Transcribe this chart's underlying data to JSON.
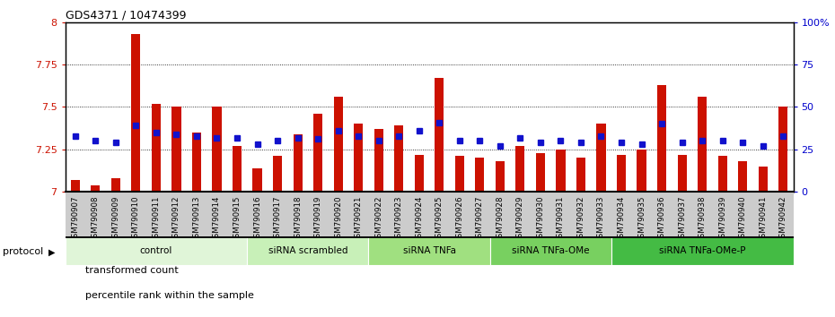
{
  "title": "GDS4371 / 10474399",
  "samples": [
    "GSM790907",
    "GSM790908",
    "GSM790909",
    "GSM790910",
    "GSM790911",
    "GSM790912",
    "GSM790913",
    "GSM790914",
    "GSM790915",
    "GSM790916",
    "GSM790917",
    "GSM790918",
    "GSM790919",
    "GSM790920",
    "GSM790921",
    "GSM790922",
    "GSM790923",
    "GSM790924",
    "GSM790925",
    "GSM790926",
    "GSM790927",
    "GSM790928",
    "GSM790929",
    "GSM790930",
    "GSM790931",
    "GSM790932",
    "GSM790933",
    "GSM790934",
    "GSM790935",
    "GSM790936",
    "GSM790937",
    "GSM790938",
    "GSM790939",
    "GSM790940",
    "GSM790941",
    "GSM790942"
  ],
  "red_values": [
    7.07,
    7.04,
    7.08,
    7.93,
    7.52,
    7.5,
    7.35,
    7.5,
    7.27,
    7.14,
    7.21,
    7.34,
    7.46,
    7.56,
    7.4,
    7.37,
    7.39,
    7.22,
    7.67,
    7.21,
    7.2,
    7.18,
    7.27,
    7.23,
    7.25,
    7.2,
    7.4,
    7.22,
    7.25,
    7.63,
    7.22,
    7.56,
    7.21,
    7.18,
    7.15,
    7.5
  ],
  "blue_values": [
    33,
    30,
    29,
    39,
    35,
    34,
    33,
    32,
    32,
    28,
    30,
    32,
    31,
    36,
    33,
    30,
    33,
    36,
    41,
    30,
    30,
    27,
    32,
    29,
    30,
    29,
    33,
    29,
    28,
    40,
    29,
    30,
    30,
    29,
    27,
    33
  ],
  "ylim": [
    7.0,
    8.0
  ],
  "yticks": [
    7.0,
    7.25,
    7.5,
    7.75,
    8.0
  ],
  "ytick_labels": [
    "7",
    "7.25",
    "7.5",
    "7.75",
    "8"
  ],
  "right_ylim": [
    0,
    100
  ],
  "right_yticks": [
    0,
    25,
    50,
    75,
    100
  ],
  "right_yticklabels": [
    "0",
    "25",
    "50",
    "75",
    "100%"
  ],
  "protocols": [
    {
      "label": "control",
      "start": 0,
      "end": 9,
      "color": "#e0f5d8"
    },
    {
      "label": "siRNA scrambled",
      "start": 9,
      "end": 15,
      "color": "#c8f0b8"
    },
    {
      "label": "siRNA TNFa",
      "start": 15,
      "end": 21,
      "color": "#a0e080"
    },
    {
      "label": "siRNA TNFa-OMe",
      "start": 21,
      "end": 27,
      "color": "#78d060"
    },
    {
      "label": "siRNA TNFa-OMe-P",
      "start": 27,
      "end": 36,
      "color": "#44bb44"
    }
  ],
  "bar_color": "#cc1100",
  "dot_color": "#1111cc",
  "bar_bottom": 7.0,
  "xtick_bg": "#cccccc",
  "plot_bg": "#ffffff"
}
